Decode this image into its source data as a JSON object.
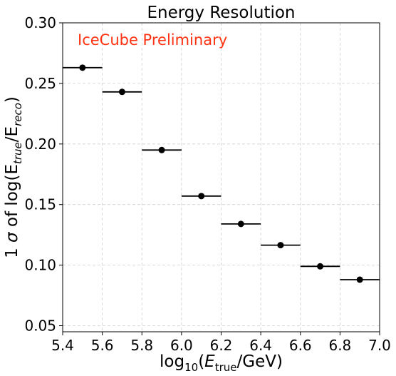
{
  "chart_data": {
    "type": "scatter",
    "title": "Energy Resolution",
    "annotation": {
      "text": "IceCube Preliminary",
      "color": "#ff3311"
    },
    "xlabel": {
      "pre": "log",
      "sub": "10",
      "mid": "(",
      "var": "E",
      "varsub": "true",
      "post": "/GeV)"
    },
    "ylabel": {
      "pre": "1 ",
      "sigma": "σ",
      "mid": " of log(E",
      "sub1": "true",
      "slash": "/E",
      "sub2": "reco",
      "post": ")"
    },
    "xlim": [
      5.4,
      7.0
    ],
    "ylim": [
      0.045,
      0.3
    ],
    "xticks": [
      "5.4",
      "5.6",
      "5.8",
      "6.0",
      "6.2",
      "6.4",
      "6.6",
      "6.8",
      "7.0"
    ],
    "yticks": [
      "0.05",
      "0.10",
      "0.15",
      "0.20",
      "0.25",
      "0.30"
    ],
    "grid": true,
    "series": [
      {
        "color": "#000000",
        "points": [
          {
            "x": 5.5,
            "y": 0.263,
            "xerr": 0.1
          },
          {
            "x": 5.7,
            "y": 0.243,
            "xerr": 0.1
          },
          {
            "x": 5.9,
            "y": 0.195,
            "xerr": 0.1
          },
          {
            "x": 6.1,
            "y": 0.157,
            "xerr": 0.1
          },
          {
            "x": 6.3,
            "y": 0.134,
            "xerr": 0.1
          },
          {
            "x": 6.5,
            "y": 0.1165,
            "xerr": 0.1
          },
          {
            "x": 6.7,
            "y": 0.099,
            "xerr": 0.1
          },
          {
            "x": 6.9,
            "y": 0.088,
            "xerr": 0.1
          }
        ]
      }
    ]
  }
}
